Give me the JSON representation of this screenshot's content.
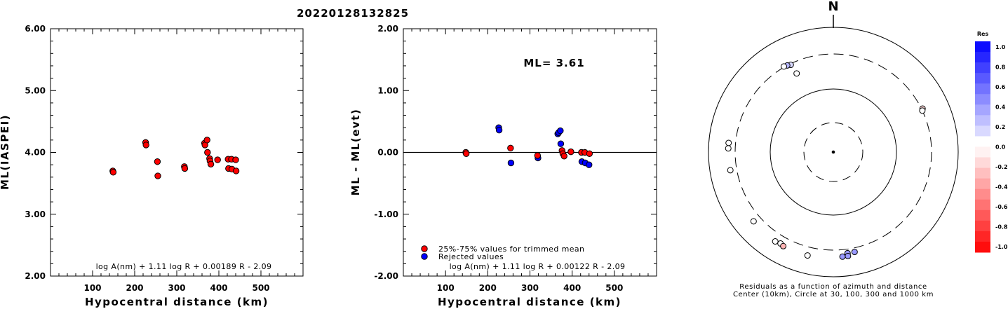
{
  "title": "20220128132825",
  "chart_data": [
    {
      "type": "scatter",
      "ylabel": "ML(IASPEI)",
      "xlabel": "Hypocentral distance (km)",
      "xlim": [
        0,
        600
      ],
      "ylim": [
        2,
        6
      ],
      "xticks": [
        "100",
        "200",
        "300",
        "400",
        "500"
      ],
      "yticks": [
        "2.00",
        "3.00",
        "4.00",
        "5.00",
        "6.00"
      ],
      "formula": "log A(nm) + 1.11 log R + 0.00189 R - 2.09",
      "points": [
        [
          148,
          3.7
        ],
        [
          149,
          3.68
        ],
        [
          226,
          4.16
        ],
        [
          227,
          4.12
        ],
        [
          254,
          3.85
        ],
        [
          255,
          3.62
        ],
        [
          318,
          3.77
        ],
        [
          319,
          3.74
        ],
        [
          366,
          4.15
        ],
        [
          367,
          4.12
        ],
        [
          372,
          4.2
        ],
        [
          373,
          4.0
        ],
        [
          378,
          3.9
        ],
        [
          379,
          3.86
        ],
        [
          381,
          3.81
        ],
        [
          397,
          3.88
        ],
        [
          422,
          3.89
        ],
        [
          423,
          3.74
        ],
        [
          430,
          3.89
        ],
        [
          431,
          3.73
        ],
        [
          440,
          3.88
        ],
        [
          441,
          3.7
        ]
      ],
      "color": "#ff0000"
    },
    {
      "type": "scatter",
      "ylabel": "ML - ML(evt)",
      "xlabel": "Hypocentral distance (km)",
      "xlim": [
        0,
        600
      ],
      "ylim": [
        -2,
        2
      ],
      "xticks": [
        "100",
        "200",
        "300",
        "400",
        "500"
      ],
      "yticks": [
        "-2.00",
        "-1.00",
        "0.00",
        "1.00",
        "2.00"
      ],
      "ml_label": "ML= 3.61",
      "formula": "log A(nm) + 1.11 log R + 0.00122 R - 2.09",
      "legend": [
        "25%-75% values for trimmed mean",
        "Rejected values"
      ],
      "trimmed": [
        [
          148,
          0.0
        ],
        [
          149,
          -0.02
        ],
        [
          254,
          0.07
        ],
        [
          318,
          -0.05
        ],
        [
          376,
          0.03
        ],
        [
          378,
          -0.02
        ],
        [
          381,
          -0.06
        ],
        [
          397,
          0.01
        ],
        [
          422,
          0.0
        ],
        [
          430,
          0.0
        ],
        [
          441,
          -0.02
        ]
      ],
      "rejected": [
        [
          226,
          0.4
        ],
        [
          227,
          0.36
        ],
        [
          255,
          -0.17
        ],
        [
          319,
          -0.09
        ],
        [
          366,
          0.3
        ],
        [
          368,
          0.32
        ],
        [
          372,
          0.35
        ],
        [
          373,
          0.14
        ],
        [
          423,
          -0.15
        ],
        [
          431,
          -0.17
        ],
        [
          440,
          -0.2
        ]
      ],
      "colors": {
        "trimmed": "#ff0000",
        "rejected": "#0000ff"
      }
    },
    {
      "type": "polar",
      "north_label": "N",
      "caption_line1": "Residuals as a function of azimuth and distance",
      "caption_line2": "Center (10km), Circle at 30, 100, 300 and 1000 km",
      "scale_title": "Res",
      "scale_ticks": [
        "1.0",
        "0.8",
        "0.6",
        "0.4",
        "0.2",
        "0.0",
        "-0.2",
        "-0.4",
        "-0.6",
        "-0.8",
        "-1.0"
      ],
      "stations": [
        {
          "az": 334,
          "dist": 290,
          "res": 0.15
        },
        {
          "az": 332,
          "dist": 300,
          "res": 0.3
        },
        {
          "az": 330,
          "dist": 310,
          "res": 0.0
        },
        {
          "az": 335,
          "dist": 210,
          "res": 0.0
        },
        {
          "az": 64,
          "dist": 315,
          "res": -0.15
        },
        {
          "az": 65,
          "dist": 300,
          "res": 0.0
        },
        {
          "az": 275,
          "dist": 410,
          "res": 0.0
        },
        {
          "az": 272,
          "dist": 410,
          "res": 0.0
        },
        {
          "az": 260,
          "dist": 400,
          "res": 0.0
        },
        {
          "az": 229,
          "dist": 420,
          "res": 0.0
        },
        {
          "az": 213,
          "dist": 440,
          "res": 0.0
        },
        {
          "az": 210,
          "dist": 420,
          "res": 0.0
        },
        {
          "az": 208,
          "dist": 440,
          "res": -0.3
        },
        {
          "az": 194,
          "dist": 440,
          "res": 0.0
        },
        {
          "az": 172,
          "dist": 360,
          "res": 0.4
        },
        {
          "az": 168,
          "dist": 360,
          "res": 0.4
        },
        {
          "az": 175,
          "dist": 410,
          "res": 0.4
        },
        {
          "az": 172,
          "dist": 410,
          "res": 0.4
        }
      ]
    }
  ]
}
